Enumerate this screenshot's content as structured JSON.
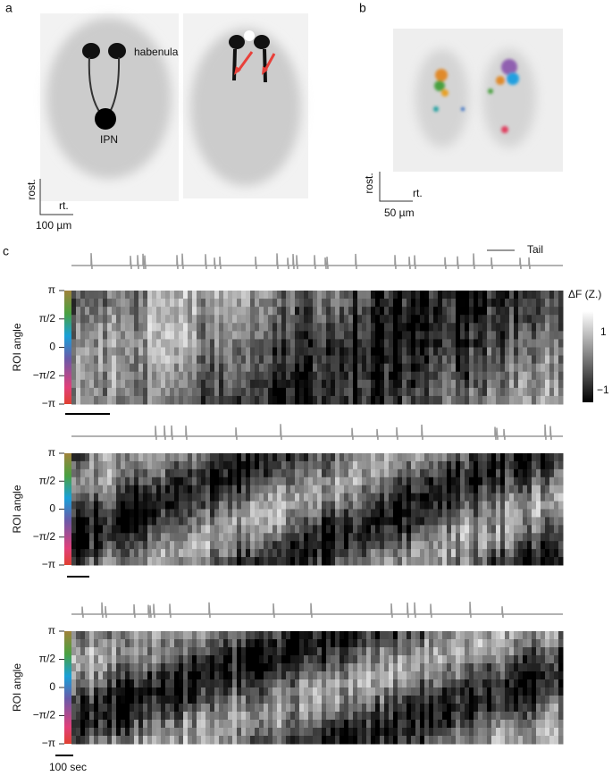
{
  "panel_a": {
    "label": "a",
    "annotations": [
      "habenula",
      "IPN"
    ],
    "scale_bar": {
      "vertical": "rost.",
      "horizontal": "rt.",
      "length": "100 µm"
    }
  },
  "panel_b": {
    "label": "b",
    "scale_bar": {
      "vertical": "rost.",
      "horizontal": "rt.",
      "length": "50 µm"
    }
  },
  "panel_c": {
    "label": "c",
    "legend": "Tail",
    "colorbar": {
      "title": "ΔF (Z.)",
      "ticks": [
        "1",
        "−1"
      ]
    },
    "heatmaps": [
      {
        "ylabel": "ROI angle",
        "yticks": [
          "π",
          "π/2",
          "0",
          "−π/2",
          "−π"
        ]
      },
      {
        "ylabel": "ROI angle",
        "yticks": [
          "π",
          "π/2",
          "0",
          "−π/2",
          "−π"
        ]
      },
      {
        "ylabel": "ROI angle",
        "yticks": [
          "π",
          "π/2",
          "0",
          "−π/2",
          "−π"
        ]
      }
    ],
    "time_scale": "100 sec"
  }
}
